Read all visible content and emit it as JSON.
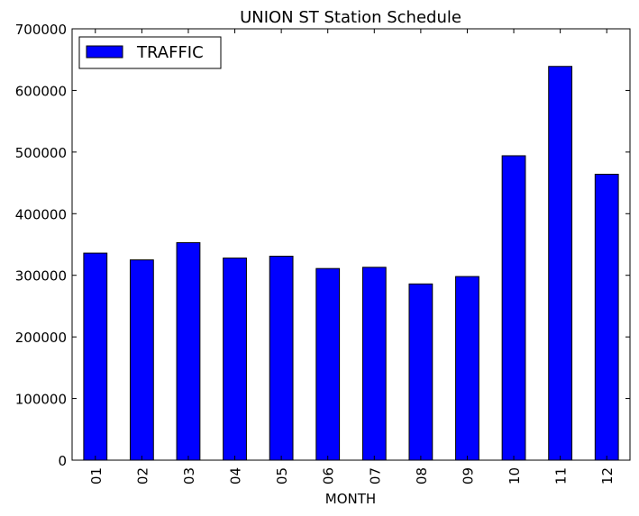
{
  "chart_data": {
    "type": "bar",
    "title": "UNION ST Station Schedule",
    "xlabel": "MONTH",
    "ylabel": "",
    "categories": [
      "01",
      "02",
      "03",
      "04",
      "05",
      "06",
      "07",
      "08",
      "09",
      "10",
      "11",
      "12"
    ],
    "series": [
      {
        "name": "TRAFFIC",
        "color": "#0000ff",
        "values": [
          336000,
          325000,
          353000,
          328000,
          331000,
          311000,
          313000,
          286000,
          298000,
          494000,
          639000,
          464000
        ]
      }
    ],
    "ylim": [
      0,
      700000
    ],
    "yticks": [
      0,
      100000,
      200000,
      300000,
      400000,
      500000,
      600000,
      700000
    ],
    "ytick_labels": [
      "0",
      "100000",
      "200000",
      "300000",
      "400000",
      "500000",
      "600000",
      "700000"
    ],
    "grid": false,
    "legend_position": "top-left"
  }
}
